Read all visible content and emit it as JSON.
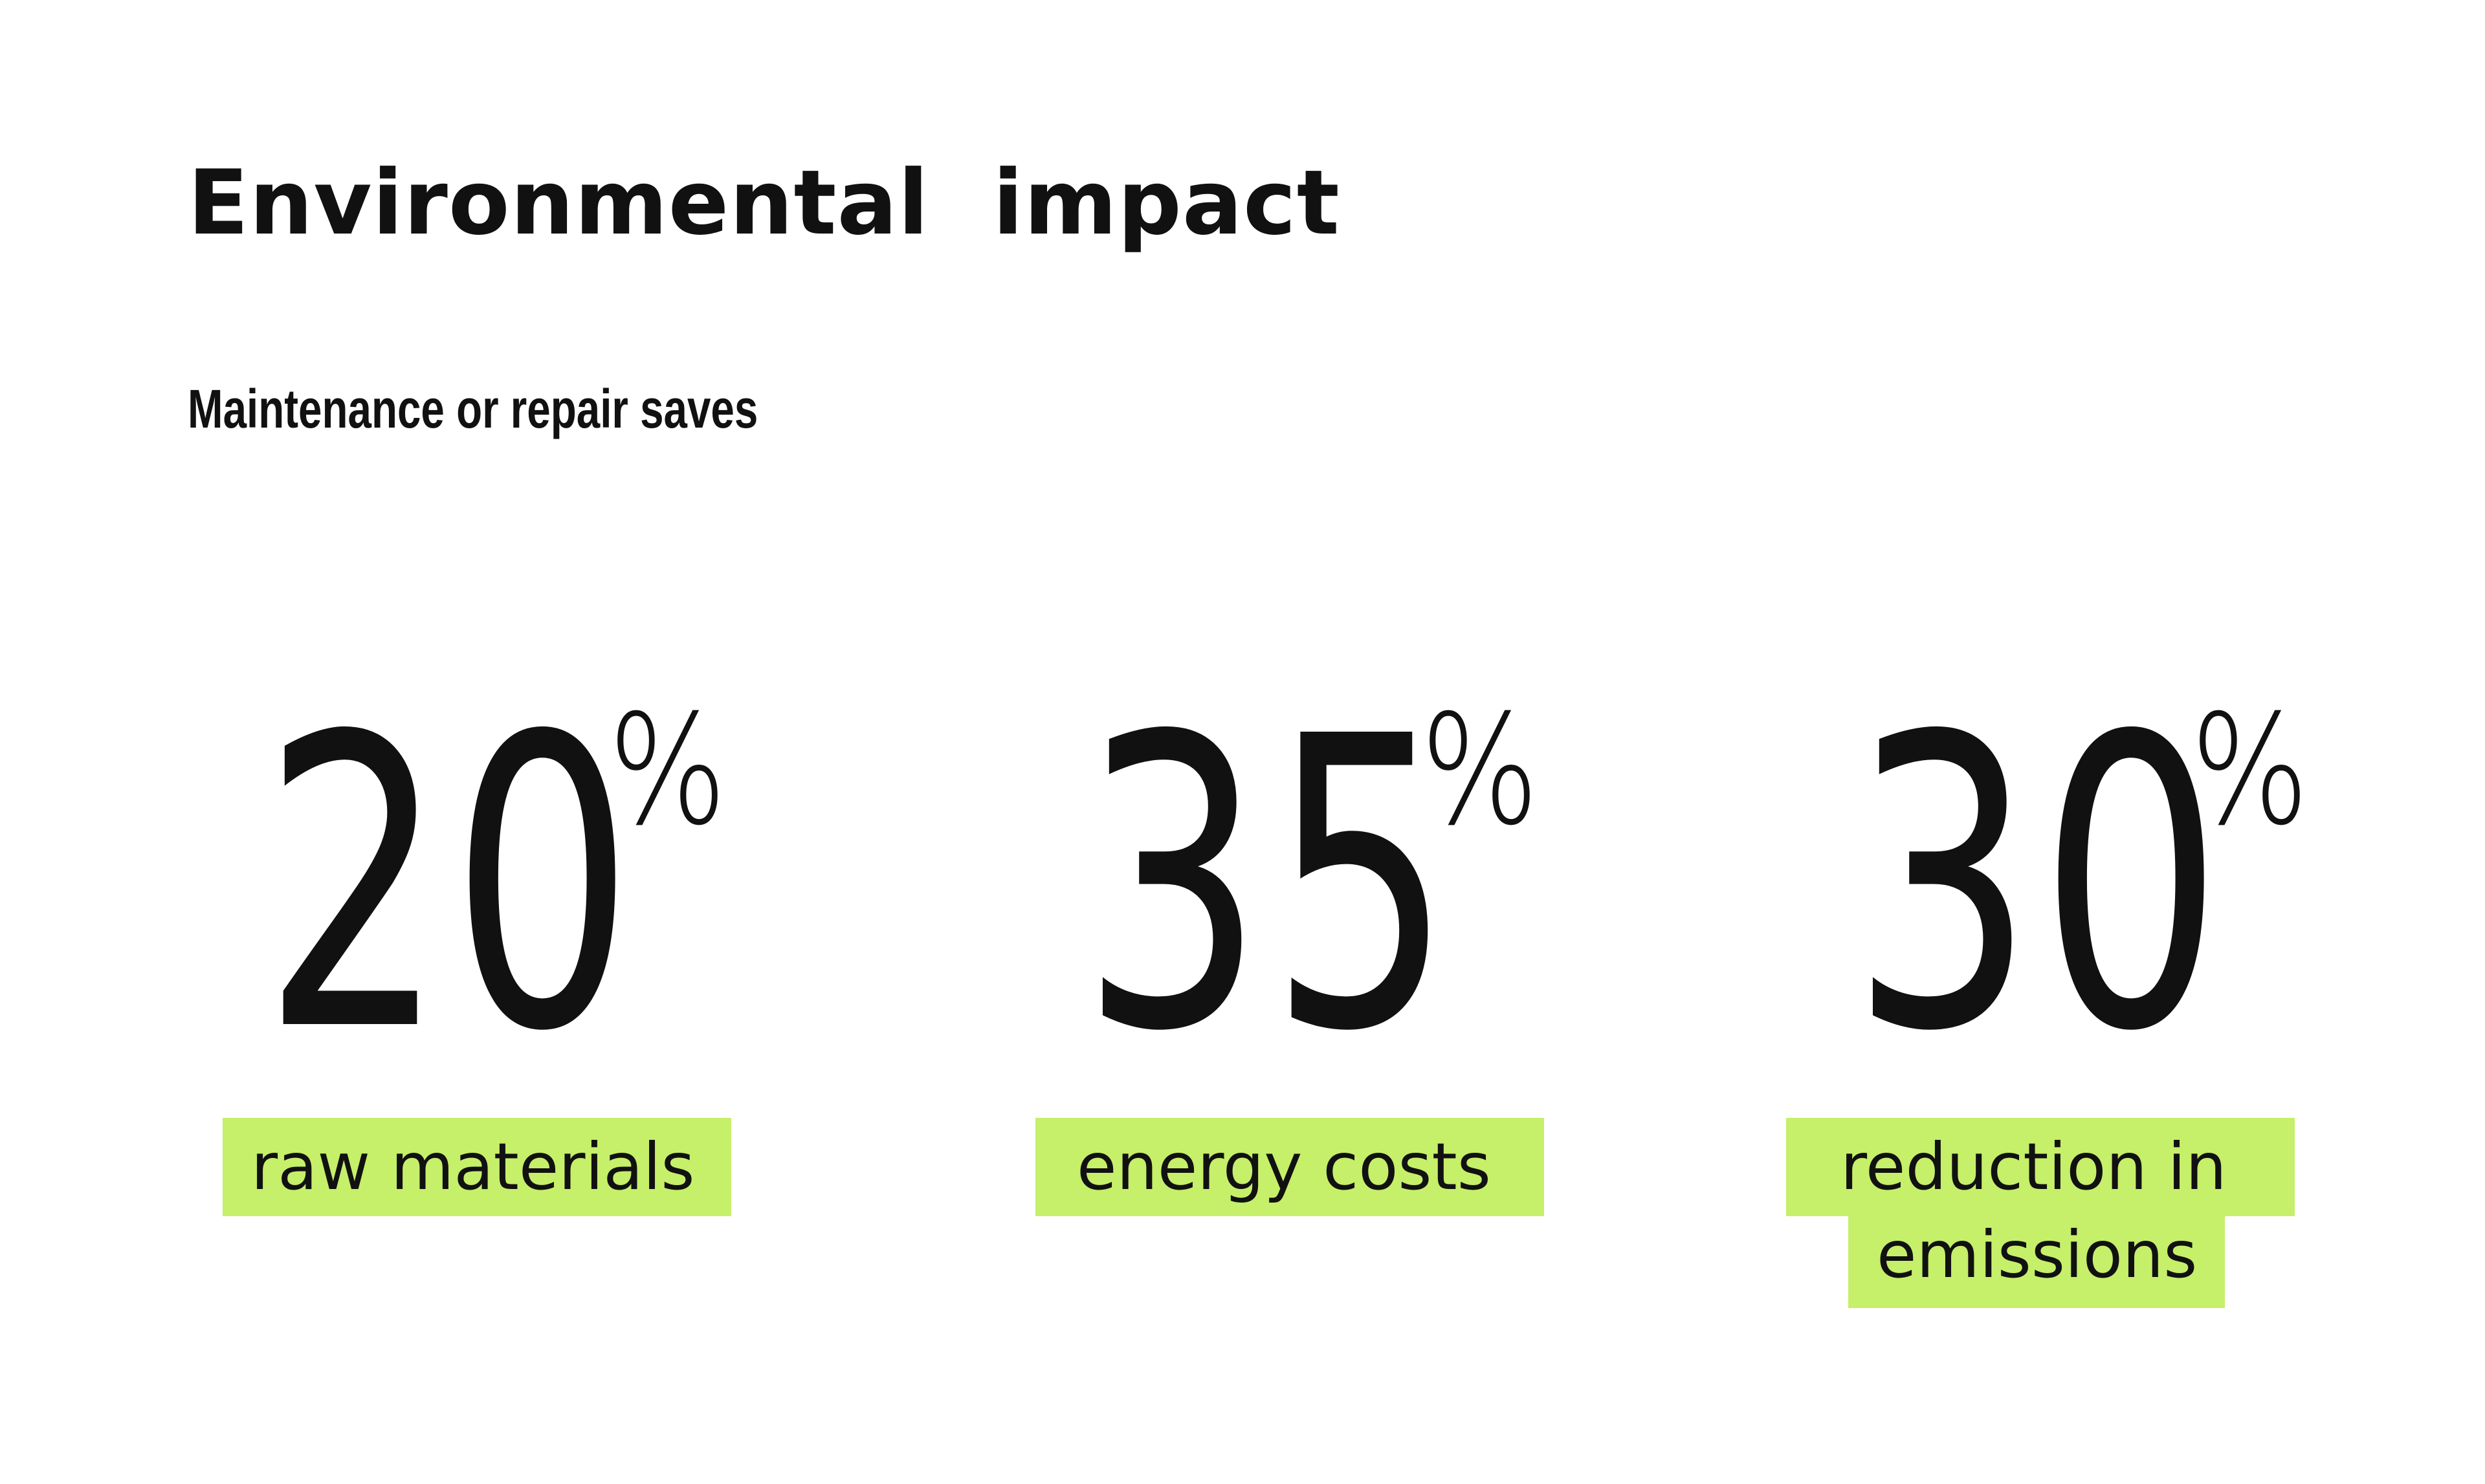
{
  "title": "Environmental  impact",
  "subtitle": "Maintenance or repair saves",
  "stats": [
    {
      "value": "20",
      "unit": "%",
      "label": "raw materials"
    },
    {
      "value": "35",
      "unit": "%",
      "label": "energy costs"
    },
    {
      "value": "30",
      "unit": "%",
      "label_line1": "reduction in",
      "label_line2": "emissions"
    }
  ],
  "colors": {
    "highlight": "#c6ef6a",
    "text": "#111111",
    "background": "#ffffff"
  }
}
